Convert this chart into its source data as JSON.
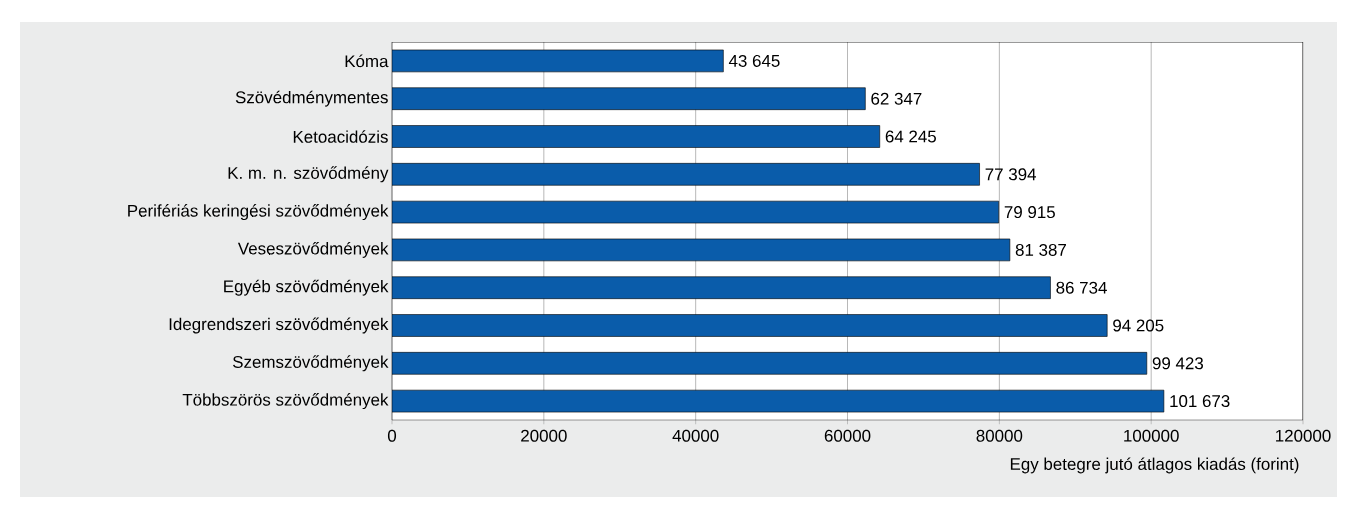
{
  "chart_data": {
    "type": "bar",
    "orientation": "horizontal",
    "xlabel": "Egy betegre jutó átlagos kiadás (forint)",
    "categories": [
      "Kóma",
      "Szövédménymentes",
      "Ketoacidózis",
      "K. m. n. szövődmény",
      "Perifériás keringési szövődmények",
      "Veseszövődmények",
      "Egyéb szövődmények",
      "Idegrendszeri szövődmények",
      "Szemszövődmények",
      "Többszörös szövődmények"
    ],
    "values": [
      43645,
      62347,
      64245,
      77394,
      79915,
      81387,
      86734,
      94205,
      99423,
      101673
    ],
    "value_labels": [
      "43 645",
      "62 347",
      "64 245",
      "77 394",
      "79 915",
      "81 387",
      "86 734",
      "94 205",
      "99 423",
      "101 673"
    ],
    "color": "#0a5caa",
    "xlim": [
      0,
      120000
    ],
    "xticks": [
      0,
      20000,
      40000,
      60000,
      80000,
      100000,
      120000
    ],
    "grid": "x"
  }
}
